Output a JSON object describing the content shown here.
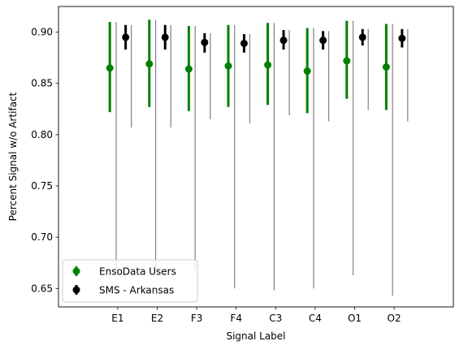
{
  "chart_data": {
    "type": "scatter",
    "xlabel": "Signal Label",
    "ylabel": "Percent Signal w/o Artifact",
    "categories": [
      "E1",
      "E2",
      "F3",
      "F4",
      "C3",
      "C4",
      "O1",
      "O2"
    ],
    "ylim": [
      0.632,
      0.925
    ],
    "yticks": [
      "0.65",
      "0.70",
      "0.75",
      "0.80",
      "0.85",
      "0.90"
    ],
    "legend_position": "lower-left",
    "series": [
      {
        "name": "EnsoData Users",
        "color": "#008000",
        "mean": [
          0.865,
          0.869,
          0.864,
          0.867,
          0.868,
          0.862,
          0.872,
          0.866
        ],
        "err_low": [
          0.822,
          0.827,
          0.823,
          0.827,
          0.829,
          0.821,
          0.835,
          0.824
        ],
        "err_high": [
          0.91,
          0.912,
          0.906,
          0.907,
          0.909,
          0.904,
          0.911,
          0.908
        ],
        "whisker_low": [
          0.666,
          0.67,
          0.668,
          0.65,
          0.648,
          0.65,
          0.663,
          0.643
        ],
        "whisker_high": [
          0.91,
          0.912,
          0.906,
          0.907,
          0.909,
          0.904,
          0.911,
          0.908
        ]
      },
      {
        "name": "SMS - Arkansas",
        "color": "#000000",
        "mean": [
          0.895,
          0.895,
          0.89,
          0.889,
          0.892,
          0.892,
          0.895,
          0.894
        ],
        "err_low": [
          0.883,
          0.883,
          0.88,
          0.88,
          0.883,
          0.883,
          0.887,
          0.885
        ],
        "err_high": [
          0.907,
          0.907,
          0.899,
          0.898,
          0.902,
          0.901,
          0.903,
          0.903
        ],
        "whisker_low": [
          0.807,
          0.807,
          0.815,
          0.811,
          0.819,
          0.813,
          0.824,
          0.813
        ],
        "whisker_high": [
          0.907,
          0.907,
          0.899,
          0.898,
          0.902,
          0.901,
          0.903,
          0.903
        ]
      }
    ]
  }
}
